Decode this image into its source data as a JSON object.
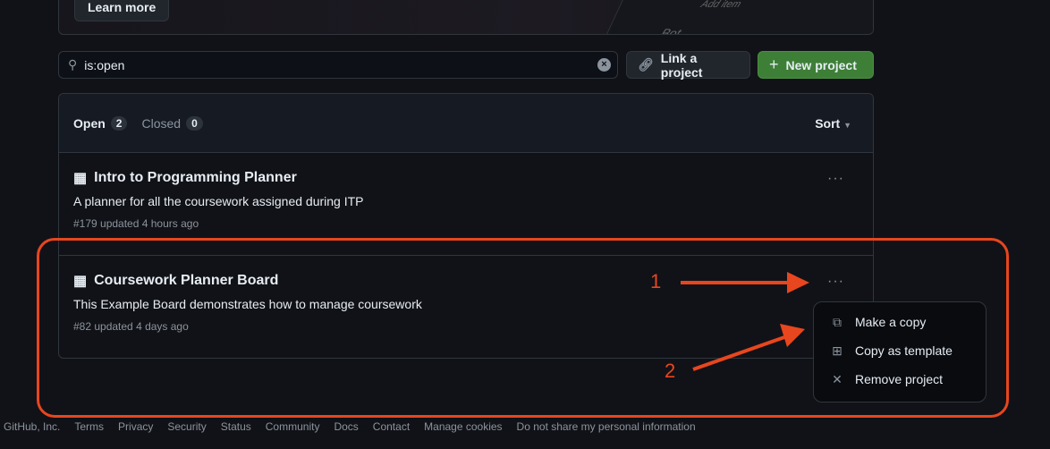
{
  "banner": {
    "learn_more": "Learn more",
    "illustration_texts": [
      "Add item",
      "Bot"
    ]
  },
  "search": {
    "value": "is:open"
  },
  "buttons": {
    "link_project": "Link a project",
    "new_project": "New project"
  },
  "tabs": {
    "open_label": "Open",
    "open_count": "2",
    "closed_label": "Closed",
    "closed_count": "0",
    "sort": "Sort"
  },
  "projects": [
    {
      "title": "Intro to Programming Planner",
      "description": "A planner for all the coursework assigned during ITP",
      "meta": "#179 updated 4 hours ago"
    },
    {
      "title": "Coursework Planner Board",
      "description": "This Example Board demonstrates how to manage coursework",
      "meta": "#82 updated 4 days ago"
    }
  ],
  "menu": [
    {
      "label": "Make a copy",
      "icon": "copy-icon"
    },
    {
      "label": "Copy as template",
      "icon": "copy-plus-icon"
    },
    {
      "label": "Remove project",
      "icon": "x-icon"
    }
  ],
  "annotations": {
    "one": "1",
    "two": "2",
    "color": "#e8461e"
  },
  "footer": [
    "GitHub, Inc.",
    "Terms",
    "Privacy",
    "Security",
    "Status",
    "Community",
    "Docs",
    "Contact",
    "Manage cookies",
    "Do not share my personal information"
  ]
}
